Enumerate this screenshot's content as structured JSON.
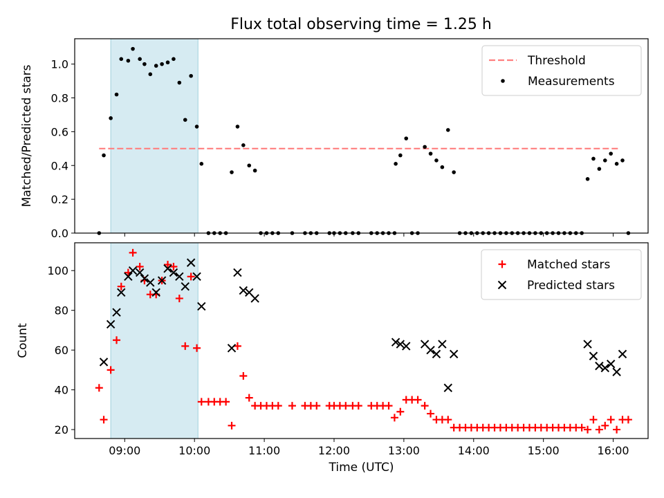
{
  "figure": {
    "title": "Flux total observing time = 1.25 h"
  },
  "chart_data": [
    {
      "type": "scatter",
      "title": "Flux total observing time = 1.25 h",
      "xlabel": "",
      "ylabel": "Matched/Predicted stars",
      "xlim": [
        "08:17",
        "16:30"
      ],
      "ylim": [
        0,
        1.15
      ],
      "yticks": [
        0.0,
        0.2,
        0.4,
        0.6,
        0.8,
        1.0
      ],
      "yticklabels": [
        "0.0",
        "0.2",
        "0.4",
        "0.6",
        "0.8",
        "1.0"
      ],
      "xticks": [
        "09:00",
        "10:00",
        "11:00",
        "12:00",
        "13:00",
        "14:00",
        "15:00",
        "16:00"
      ],
      "shaded_interval": [
        "08:48",
        "10:03"
      ],
      "legend_position": "top-right",
      "threshold": {
        "name": "Threshold",
        "value": 0.5,
        "x": [
          "08:38",
          "16:06"
        ],
        "color": "#ff7f7f",
        "style": "dashed"
      },
      "series": [
        {
          "name": "Measurements",
          "color": "#000000",
          "marker": "dot",
          "points": [
            [
              "08:38",
              0.0
            ],
            [
              "08:42",
              0.46
            ],
            [
              "08:48",
              0.68
            ],
            [
              "08:53",
              0.82
            ],
            [
              "08:57",
              1.03
            ],
            [
              "09:03",
              1.02
            ],
            [
              "09:07",
              1.09
            ],
            [
              "09:13",
              1.03
            ],
            [
              "09:17",
              1.0
            ],
            [
              "09:22",
              0.94
            ],
            [
              "09:27",
              0.99
            ],
            [
              "09:32",
              1.0
            ],
            [
              "09:37",
              1.01
            ],
            [
              "09:42",
              1.03
            ],
            [
              "09:47",
              0.89
            ],
            [
              "09:52",
              0.67
            ],
            [
              "09:57",
              0.93
            ],
            [
              "10:02",
              0.63
            ],
            [
              "10:06",
              0.41
            ],
            [
              "10:12",
              0.0
            ],
            [
              "10:17",
              0.0
            ],
            [
              "10:22",
              0.0
            ],
            [
              "10:27",
              0.0
            ],
            [
              "10:32",
              0.36
            ],
            [
              "10:37",
              0.63
            ],
            [
              "10:42",
              0.52
            ],
            [
              "10:47",
              0.4
            ],
            [
              "10:52",
              0.37
            ],
            [
              "10:57",
              0.0
            ],
            [
              "11:02",
              0.0
            ],
            [
              "11:07",
              0.0
            ],
            [
              "11:12",
              0.0
            ],
            [
              "11:24",
              0.0
            ],
            [
              "11:35",
              0.0
            ],
            [
              "11:40",
              0.0
            ],
            [
              "11:45",
              0.0
            ],
            [
              "11:56",
              0.0
            ],
            [
              "12:00",
              0.0
            ],
            [
              "12:05",
              0.0
            ],
            [
              "12:10",
              0.0
            ],
            [
              "12:16",
              0.0
            ],
            [
              "12:21",
              0.0
            ],
            [
              "12:32",
              0.0
            ],
            [
              "12:37",
              0.0
            ],
            [
              "12:42",
              0.0
            ],
            [
              "12:47",
              0.0
            ],
            [
              "12:52",
              0.0
            ],
            [
              "12:53",
              0.41
            ],
            [
              "12:57",
              0.46
            ],
            [
              "13:02",
              0.56
            ],
            [
              "13:07",
              0.0
            ],
            [
              "13:12",
              0.0
            ],
            [
              "13:18",
              0.51
            ],
            [
              "13:23",
              0.47
            ],
            [
              "13:28",
              0.43
            ],
            [
              "13:33",
              0.39
            ],
            [
              "13:38",
              0.61
            ],
            [
              "13:43",
              0.36
            ],
            [
              "13:48",
              0.0
            ],
            [
              "13:53",
              0.0
            ],
            [
              "13:58",
              0.0
            ],
            [
              "14:03",
              0.0
            ],
            [
              "14:08",
              0.0
            ],
            [
              "14:13",
              0.0
            ],
            [
              "14:18",
              0.0
            ],
            [
              "14:23",
              0.0
            ],
            [
              "14:28",
              0.0
            ],
            [
              "14:33",
              0.0
            ],
            [
              "14:38",
              0.0
            ],
            [
              "14:43",
              0.0
            ],
            [
              "14:48",
              0.0
            ],
            [
              "14:53",
              0.0
            ],
            [
              "14:58",
              0.0
            ],
            [
              "15:03",
              0.0
            ],
            [
              "15:08",
              0.0
            ],
            [
              "15:13",
              0.0
            ],
            [
              "15:18",
              0.0
            ],
            [
              "15:23",
              0.0
            ],
            [
              "15:28",
              0.0
            ],
            [
              "15:33",
              0.0
            ],
            [
              "15:38",
              0.32
            ],
            [
              "15:43",
              0.44
            ],
            [
              "15:48",
              0.38
            ],
            [
              "15:53",
              0.43
            ],
            [
              "15:58",
              0.47
            ],
            [
              "16:03",
              0.41
            ],
            [
              "16:08",
              0.43
            ],
            [
              "16:13",
              0.0
            ]
          ]
        }
      ]
    },
    {
      "type": "scatter",
      "title": "",
      "xlabel": "Time (UTC)",
      "ylabel": "Count",
      "xlim": [
        "08:17",
        "16:30"
      ],
      "ylim": [
        15.5,
        114
      ],
      "yticks": [
        20,
        40,
        60,
        80,
        100
      ],
      "yticklabels": [
        "20",
        "40",
        "60",
        "80",
        "100"
      ],
      "xticks": [
        "09:00",
        "10:00",
        "11:00",
        "12:00",
        "13:00",
        "14:00",
        "15:00",
        "16:00"
      ],
      "xticklabels": [
        "09:00",
        "10:00",
        "11:00",
        "12:00",
        "13:00",
        "14:00",
        "15:00",
        "16:00"
      ],
      "shaded_interval": [
        "08:48",
        "10:03"
      ],
      "legend_position": "top-right",
      "series": [
        {
          "name": "Matched stars",
          "color": "#ff0000",
          "marker": "plus",
          "points": [
            [
              "08:38",
              41
            ],
            [
              "08:42",
              25
            ],
            [
              "08:48",
              50
            ],
            [
              "08:53",
              65
            ],
            [
              "08:57",
              92
            ],
            [
              "09:03",
              99
            ],
            [
              "09:07",
              109
            ],
            [
              "09:13",
              102
            ],
            [
              "09:17",
              95
            ],
            [
              "09:22",
              88
            ],
            [
              "09:27",
              88
            ],
            [
              "09:32",
              95
            ],
            [
              "09:37",
              103
            ],
            [
              "09:42",
              102
            ],
            [
              "09:47",
              86
            ],
            [
              "09:52",
              62
            ],
            [
              "09:57",
              97
            ],
            [
              "10:02",
              61
            ],
            [
              "10:06",
              34
            ],
            [
              "10:12",
              34
            ],
            [
              "10:17",
              34
            ],
            [
              "10:22",
              34
            ],
            [
              "10:27",
              34
            ],
            [
              "10:32",
              22
            ],
            [
              "10:37",
              62
            ],
            [
              "10:42",
              47
            ],
            [
              "10:47",
              36
            ],
            [
              "10:52",
              32
            ],
            [
              "10:57",
              32
            ],
            [
              "11:02",
              32
            ],
            [
              "11:07",
              32
            ],
            [
              "11:12",
              32
            ],
            [
              "11:24",
              32
            ],
            [
              "11:35",
              32
            ],
            [
              "11:40",
              32
            ],
            [
              "11:45",
              32
            ],
            [
              "11:56",
              32
            ],
            [
              "12:00",
              32
            ],
            [
              "12:05",
              32
            ],
            [
              "12:10",
              32
            ],
            [
              "12:16",
              32
            ],
            [
              "12:21",
              32
            ],
            [
              "12:32",
              32
            ],
            [
              "12:37",
              32
            ],
            [
              "12:42",
              32
            ],
            [
              "12:47",
              32
            ],
            [
              "12:52",
              26
            ],
            [
              "12:57",
              29
            ],
            [
              "13:02",
              35
            ],
            [
              "13:07",
              35
            ],
            [
              "13:12",
              35
            ],
            [
              "13:18",
              32
            ],
            [
              "13:23",
              28
            ],
            [
              "13:28",
              25
            ],
            [
              "13:33",
              25
            ],
            [
              "13:38",
              25
            ],
            [
              "13:43",
              21
            ],
            [
              "13:48",
              21
            ],
            [
              "13:53",
              21
            ],
            [
              "13:58",
              21
            ],
            [
              "14:03",
              21
            ],
            [
              "14:08",
              21
            ],
            [
              "14:13",
              21
            ],
            [
              "14:18",
              21
            ],
            [
              "14:23",
              21
            ],
            [
              "14:28",
              21
            ],
            [
              "14:33",
              21
            ],
            [
              "14:38",
              21
            ],
            [
              "14:43",
              21
            ],
            [
              "14:48",
              21
            ],
            [
              "14:53",
              21
            ],
            [
              "14:58",
              21
            ],
            [
              "15:03",
              21
            ],
            [
              "15:08",
              21
            ],
            [
              "15:13",
              21
            ],
            [
              "15:18",
              21
            ],
            [
              "15:23",
              21
            ],
            [
              "15:28",
              21
            ],
            [
              "15:33",
              21
            ],
            [
              "15:38",
              20
            ],
            [
              "15:43",
              25
            ],
            [
              "15:48",
              20
            ],
            [
              "15:53",
              22
            ],
            [
              "15:58",
              25
            ],
            [
              "16:03",
              20
            ],
            [
              "16:08",
              25
            ],
            [
              "16:13",
              25
            ]
          ]
        },
        {
          "name": "Predicted stars",
          "color": "#000000",
          "marker": "x",
          "points": [
            [
              "08:42",
              54
            ],
            [
              "08:48",
              73
            ],
            [
              "08:53",
              79
            ],
            [
              "08:57",
              89
            ],
            [
              "09:03",
              97
            ],
            [
              "09:07",
              100
            ],
            [
              "09:13",
              99
            ],
            [
              "09:17",
              96
            ],
            [
              "09:22",
              94
            ],
            [
              "09:27",
              89
            ],
            [
              "09:32",
              95
            ],
            [
              "09:37",
              101
            ],
            [
              "09:42",
              99
            ],
            [
              "09:47",
              97
            ],
            [
              "09:52",
              92
            ],
            [
              "09:57",
              104
            ],
            [
              "10:02",
              97
            ],
            [
              "10:06",
              82
            ],
            [
              "10:32",
              61
            ],
            [
              "10:37",
              99
            ],
            [
              "10:42",
              90
            ],
            [
              "10:47",
              89
            ],
            [
              "10:52",
              86
            ],
            [
              "12:53",
              64
            ],
            [
              "12:57",
              63
            ],
            [
              "13:02",
              62
            ],
            [
              "13:18",
              63
            ],
            [
              "13:23",
              60
            ],
            [
              "13:28",
              58
            ],
            [
              "13:33",
              63
            ],
            [
              "13:38",
              41
            ],
            [
              "13:43",
              58
            ],
            [
              "15:38",
              63
            ],
            [
              "15:43",
              57
            ],
            [
              "15:48",
              52
            ],
            [
              "15:53",
              51
            ],
            [
              "15:58",
              53
            ],
            [
              "16:03",
              49
            ],
            [
              "16:08",
              58
            ]
          ]
        }
      ]
    }
  ]
}
